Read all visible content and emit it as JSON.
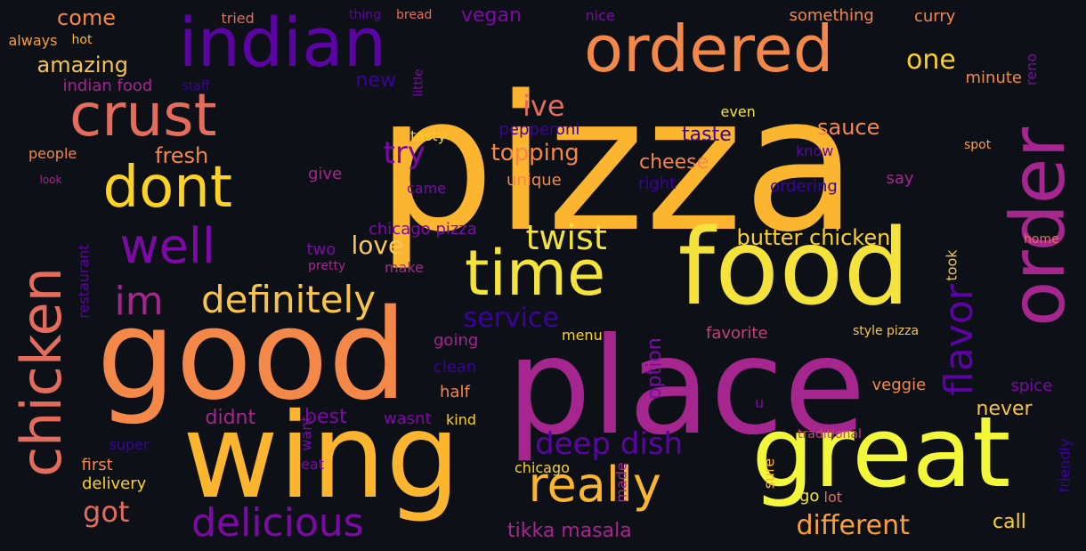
{
  "background": "#0d1017",
  "palette": [
    "#fcb52e",
    "#fb9f3a",
    "#f48849",
    "#e46c5c",
    "#c6407a",
    "#a5268e",
    "#7d0aa6",
    "#5c04a3",
    "#3a049a",
    "#f3e33a"
  ],
  "words": [
    {
      "text": "pizza",
      "color": "#fcb52e"
    },
    {
      "text": "good",
      "color": "#f48849"
    },
    {
      "text": "place",
      "color": "#a5268e"
    },
    {
      "text": "wing",
      "color": "#fcb52e"
    },
    {
      "text": "food",
      "color": "#f3e33a"
    },
    {
      "text": "great",
      "color": "#f3f73a"
    },
    {
      "text": "order",
      "color": "#a5268e"
    },
    {
      "text": "indian",
      "color": "#5c04a3"
    },
    {
      "text": "ordered",
      "color": "#f48849"
    },
    {
      "text": "crust",
      "color": "#e46c5c"
    },
    {
      "text": "dont",
      "color": "#fcd225"
    },
    {
      "text": "chicken",
      "color": "#e46c5c"
    },
    {
      "text": "time",
      "color": "#f3e33a"
    },
    {
      "text": "well",
      "color": "#7d0aa6"
    },
    {
      "text": "really",
      "color": "#fcb52e"
    },
    {
      "text": "im",
      "color": "#a5268e"
    },
    {
      "text": "definitely",
      "color": "#f8c54a"
    },
    {
      "text": "delicious",
      "color": "#7d0aa6"
    },
    {
      "text": "flavor",
      "color": "#5c04a3"
    },
    {
      "text": "twist",
      "color": "#f3e33a"
    },
    {
      "text": "deep dish",
      "color": "#5c04a3"
    },
    {
      "text": "one",
      "color": "#fcd225"
    },
    {
      "text": "got",
      "color": "#e46c5c"
    },
    {
      "text": "different",
      "color": "#fb9f3a"
    },
    {
      "text": "service",
      "color": "#3a049a"
    },
    {
      "text": "try",
      "color": "#7d0aa6"
    },
    {
      "text": "love",
      "color": "#fcc85a"
    },
    {
      "text": "ive",
      "color": "#e46c5c"
    },
    {
      "text": "amazing",
      "color": "#f8c54a"
    },
    {
      "text": "come",
      "color": "#f48849"
    },
    {
      "text": "fresh",
      "color": "#f48849"
    },
    {
      "text": "topping",
      "color": "#f48849"
    },
    {
      "text": "butter chicken",
      "color": "#fcd225"
    },
    {
      "text": "sauce",
      "color": "#f48849"
    },
    {
      "text": "cheese",
      "color": "#f48849"
    },
    {
      "text": "taste",
      "color": "#3a049a"
    },
    {
      "text": "vegan",
      "color": "#7d0aa6"
    },
    {
      "text": "option",
      "color": "#7d0aa6"
    },
    {
      "text": "tikka masala",
      "color": "#a5268e"
    },
    {
      "text": "best",
      "color": "#7d0aa6"
    },
    {
      "text": "didnt",
      "color": "#a5268e"
    },
    {
      "text": "never",
      "color": "#f8c54a"
    },
    {
      "text": "call",
      "color": "#fcd225"
    },
    {
      "text": "veggie",
      "color": "#f48849"
    },
    {
      "text": "spice",
      "color": "#7d0aa6"
    },
    {
      "text": "favorite",
      "color": "#c6407a"
    },
    {
      "text": "new",
      "color": "#3a049a"
    },
    {
      "text": "unique",
      "color": "#f48849"
    },
    {
      "text": "pepperoni",
      "color": "#3a049a"
    },
    {
      "text": "chicago pizza",
      "color": "#7d0aa6"
    },
    {
      "text": "going",
      "color": "#a5268e"
    },
    {
      "text": "clean",
      "color": "#3a049a"
    },
    {
      "text": "half",
      "color": "#f48849"
    },
    {
      "text": "menu",
      "color": "#fcd225"
    },
    {
      "text": "wasnt",
      "color": "#7d0aa6"
    },
    {
      "text": "kind",
      "color": "#fcd225"
    },
    {
      "text": "give",
      "color": "#a5268e"
    },
    {
      "text": "came",
      "color": "#7d0aa6"
    },
    {
      "text": "two",
      "color": "#7d0aa6"
    },
    {
      "text": "make",
      "color": "#a5268e"
    },
    {
      "text": "pretty",
      "color": "#a5268e"
    },
    {
      "text": "first",
      "color": "#f48849"
    },
    {
      "text": "delivery",
      "color": "#fcd225"
    },
    {
      "text": "super",
      "color": "#3a049a"
    },
    {
      "text": "eat",
      "color": "#7d0aa6"
    },
    {
      "text": "want",
      "color": "#7d0aa6"
    },
    {
      "text": "made",
      "color": "#a5268e"
    },
    {
      "text": "chicago",
      "color": "#fcd225"
    },
    {
      "text": "sure",
      "color": "#fcb52e"
    },
    {
      "text": "go",
      "color": "#f3e33a"
    },
    {
      "text": "lot",
      "color": "#e46c5c"
    },
    {
      "text": "traditional",
      "color": "#c6407a"
    },
    {
      "text": "friendly",
      "color": "#3a049a"
    },
    {
      "text": "u",
      "color": "#7d0aa6"
    },
    {
      "text": "style pizza",
      "color": "#f8c54a"
    },
    {
      "text": "took",
      "color": "#f8c54a"
    },
    {
      "text": "home",
      "color": "#e46c5c"
    },
    {
      "text": "spot",
      "color": "#fb9f3a"
    },
    {
      "text": "minute",
      "color": "#f48849"
    },
    {
      "text": "even",
      "color": "#f3e33a"
    },
    {
      "text": "reno",
      "color": "#7d0aa6"
    },
    {
      "text": "curry",
      "color": "#f48849"
    },
    {
      "text": "something",
      "color": "#f48849"
    },
    {
      "text": "nice",
      "color": "#7d0aa6"
    },
    {
      "text": "bread",
      "color": "#e46c5c"
    },
    {
      "text": "thing",
      "color": "#5c04a3"
    },
    {
      "text": "tried",
      "color": "#e46c5c"
    },
    {
      "text": "always",
      "color": "#fb9f3a"
    },
    {
      "text": "hot",
      "color": "#fcb52e"
    },
    {
      "text": "indian food",
      "color": "#a5268e"
    },
    {
      "text": "staff",
      "color": "#3a049a"
    },
    {
      "text": "little",
      "color": "#7d0aa6"
    },
    {
      "text": "tasty",
      "color": "#fcd225"
    },
    {
      "text": "people",
      "color": "#f48849"
    },
    {
      "text": "look",
      "color": "#a5268e"
    },
    {
      "text": "restaurant",
      "color": "#5c04a3"
    },
    {
      "text": "know",
      "color": "#5c04a3"
    },
    {
      "text": "right",
      "color": "#3a049a"
    },
    {
      "text": "ordering",
      "color": "#3a049a"
    },
    {
      "text": "say",
      "color": "#a5268e"
    }
  ]
}
